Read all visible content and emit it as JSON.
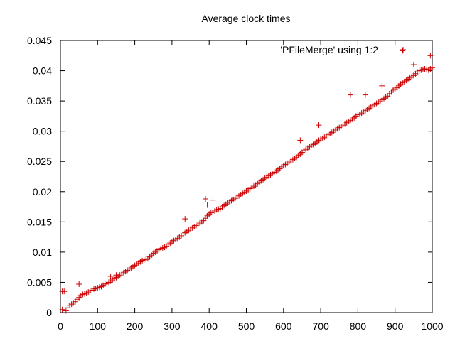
{
  "chart_data": {
    "type": "scatter",
    "title": "Average clock times",
    "xlabel": "",
    "ylabel": "",
    "xlim": [
      0,
      1000
    ],
    "ylim": [
      0,
      0.045
    ],
    "xticks": [
      "0",
      "100",
      "200",
      "300",
      "400",
      "500",
      "600",
      "700",
      "800",
      "900",
      "1000"
    ],
    "yticks": [
      "0",
      "0.005",
      "0.01",
      "0.015",
      "0.02",
      "0.025",
      "0.03",
      "0.035",
      "0.04",
      "0.045"
    ],
    "grid": false,
    "legend_position": "top-right",
    "marker": "plus",
    "color": "#cc0000",
    "series": [
      {
        "name": "'PFileMerge' using 1:2",
        "x": [
          5,
          10,
          15,
          20,
          25,
          30,
          35,
          40,
          45,
          50,
          55,
          60,
          65,
          70,
          75,
          80,
          85,
          90,
          95,
          100,
          105,
          110,
          115,
          120,
          125,
          130,
          135,
          140,
          145,
          150,
          155,
          160,
          165,
          170,
          175,
          180,
          185,
          190,
          195,
          200,
          205,
          210,
          215,
          220,
          225,
          230,
          235,
          240,
          245,
          250,
          255,
          260,
          265,
          270,
          275,
          280,
          285,
          290,
          295,
          300,
          305,
          310,
          315,
          320,
          325,
          330,
          335,
          340,
          345,
          350,
          355,
          360,
          365,
          370,
          375,
          380,
          385,
          390,
          395,
          400,
          405,
          410,
          415,
          420,
          425,
          430,
          435,
          440,
          445,
          450,
          455,
          460,
          465,
          470,
          475,
          480,
          485,
          490,
          495,
          500,
          505,
          510,
          515,
          520,
          525,
          530,
          535,
          540,
          545,
          550,
          555,
          560,
          565,
          570,
          575,
          580,
          585,
          590,
          595,
          600,
          605,
          610,
          615,
          620,
          625,
          630,
          635,
          640,
          645,
          650,
          655,
          660,
          665,
          670,
          675,
          680,
          685,
          690,
          695,
          700,
          705,
          710,
          715,
          720,
          725,
          730,
          735,
          740,
          745,
          750,
          755,
          760,
          765,
          770,
          775,
          780,
          785,
          790,
          795,
          800,
          805,
          810,
          815,
          820,
          825,
          830,
          835,
          840,
          845,
          850,
          855,
          860,
          865,
          870,
          875,
          880,
          885,
          890,
          895,
          900,
          905,
          910,
          915,
          920,
          925,
          930,
          935,
          940,
          945,
          950,
          955,
          960,
          965,
          970,
          975,
          980,
          985,
          990,
          995,
          1000,
          5,
          50,
          135,
          335,
          390,
          395,
          410,
          645,
          695,
          780,
          820,
          865,
          920,
          950,
          995,
          150
        ],
        "y": [
          0.0005,
          0.0035,
          0.0003,
          0.0008,
          0.0012,
          0.0014,
          0.0016,
          0.0018,
          0.0022,
          0.0025,
          0.0028,
          0.003,
          0.0031,
          0.0032,
          0.0034,
          0.0036,
          0.0037,
          0.0039,
          0.004,
          0.0041,
          0.0042,
          0.0043,
          0.0045,
          0.0047,
          0.0048,
          0.005,
          0.0052,
          0.0054,
          0.0056,
          0.0058,
          0.006,
          0.0062,
          0.0064,
          0.0066,
          0.0068,
          0.007,
          0.0072,
          0.0074,
          0.0076,
          0.0078,
          0.008,
          0.0082,
          0.0084,
          0.0086,
          0.0087,
          0.0088,
          0.0089,
          0.0092,
          0.0095,
          0.0098,
          0.01,
          0.0102,
          0.0104,
          0.0106,
          0.0107,
          0.0108,
          0.011,
          0.0113,
          0.0115,
          0.0117,
          0.0119,
          0.0121,
          0.0123,
          0.0125,
          0.0127,
          0.013,
          0.0132,
          0.0134,
          0.0136,
          0.0138,
          0.014,
          0.0142,
          0.0144,
          0.0146,
          0.0148,
          0.015,
          0.0152,
          0.0156,
          0.016,
          0.0163,
          0.0165,
          0.0166,
          0.0168,
          0.017,
          0.0171,
          0.0172,
          0.0175,
          0.0177,
          0.0179,
          0.0181,
          0.0183,
          0.0185,
          0.0187,
          0.0189,
          0.0191,
          0.0193,
          0.0195,
          0.0197,
          0.0199,
          0.0201,
          0.0203,
          0.0205,
          0.0207,
          0.0209,
          0.0211,
          0.0213,
          0.0216,
          0.0218,
          0.022,
          0.0222,
          0.0224,
          0.0226,
          0.0228,
          0.023,
          0.0232,
          0.0234,
          0.0236,
          0.0238,
          0.0241,
          0.0243,
          0.0245,
          0.0247,
          0.0249,
          0.0251,
          0.0253,
          0.0255,
          0.0257,
          0.026,
          0.0262,
          0.0265,
          0.0268,
          0.027,
          0.0272,
          0.0274,
          0.0276,
          0.0278,
          0.028,
          0.0282,
          0.0285,
          0.0287,
          0.0288,
          0.029,
          0.0292,
          0.0294,
          0.0296,
          0.0298,
          0.03,
          0.0302,
          0.0304,
          0.0306,
          0.0308,
          0.031,
          0.0312,
          0.0314,
          0.0316,
          0.0318,
          0.032,
          0.0322,
          0.0325,
          0.0327,
          0.0328,
          0.033,
          0.0332,
          0.0334,
          0.0336,
          0.0338,
          0.034,
          0.0342,
          0.0344,
          0.0346,
          0.0348,
          0.035,
          0.0352,
          0.0354,
          0.0356,
          0.0358,
          0.0362,
          0.0365,
          0.0368,
          0.037,
          0.0372,
          0.0375,
          0.0378,
          0.038,
          0.0382,
          0.0384,
          0.0386,
          0.0388,
          0.039,
          0.0392,
          0.0395,
          0.0398,
          0.04,
          0.0401,
          0.0402,
          0.0403,
          0.0402,
          0.0401,
          0.0403,
          0.0405,
          0.0035,
          0.0047,
          0.006,
          0.0155,
          0.0188,
          0.0178,
          0.0186,
          0.0285,
          0.031,
          0.036,
          0.036,
          0.0375,
          0.0433,
          0.041,
          0.0425,
          0.0062
        ]
      }
    ]
  }
}
